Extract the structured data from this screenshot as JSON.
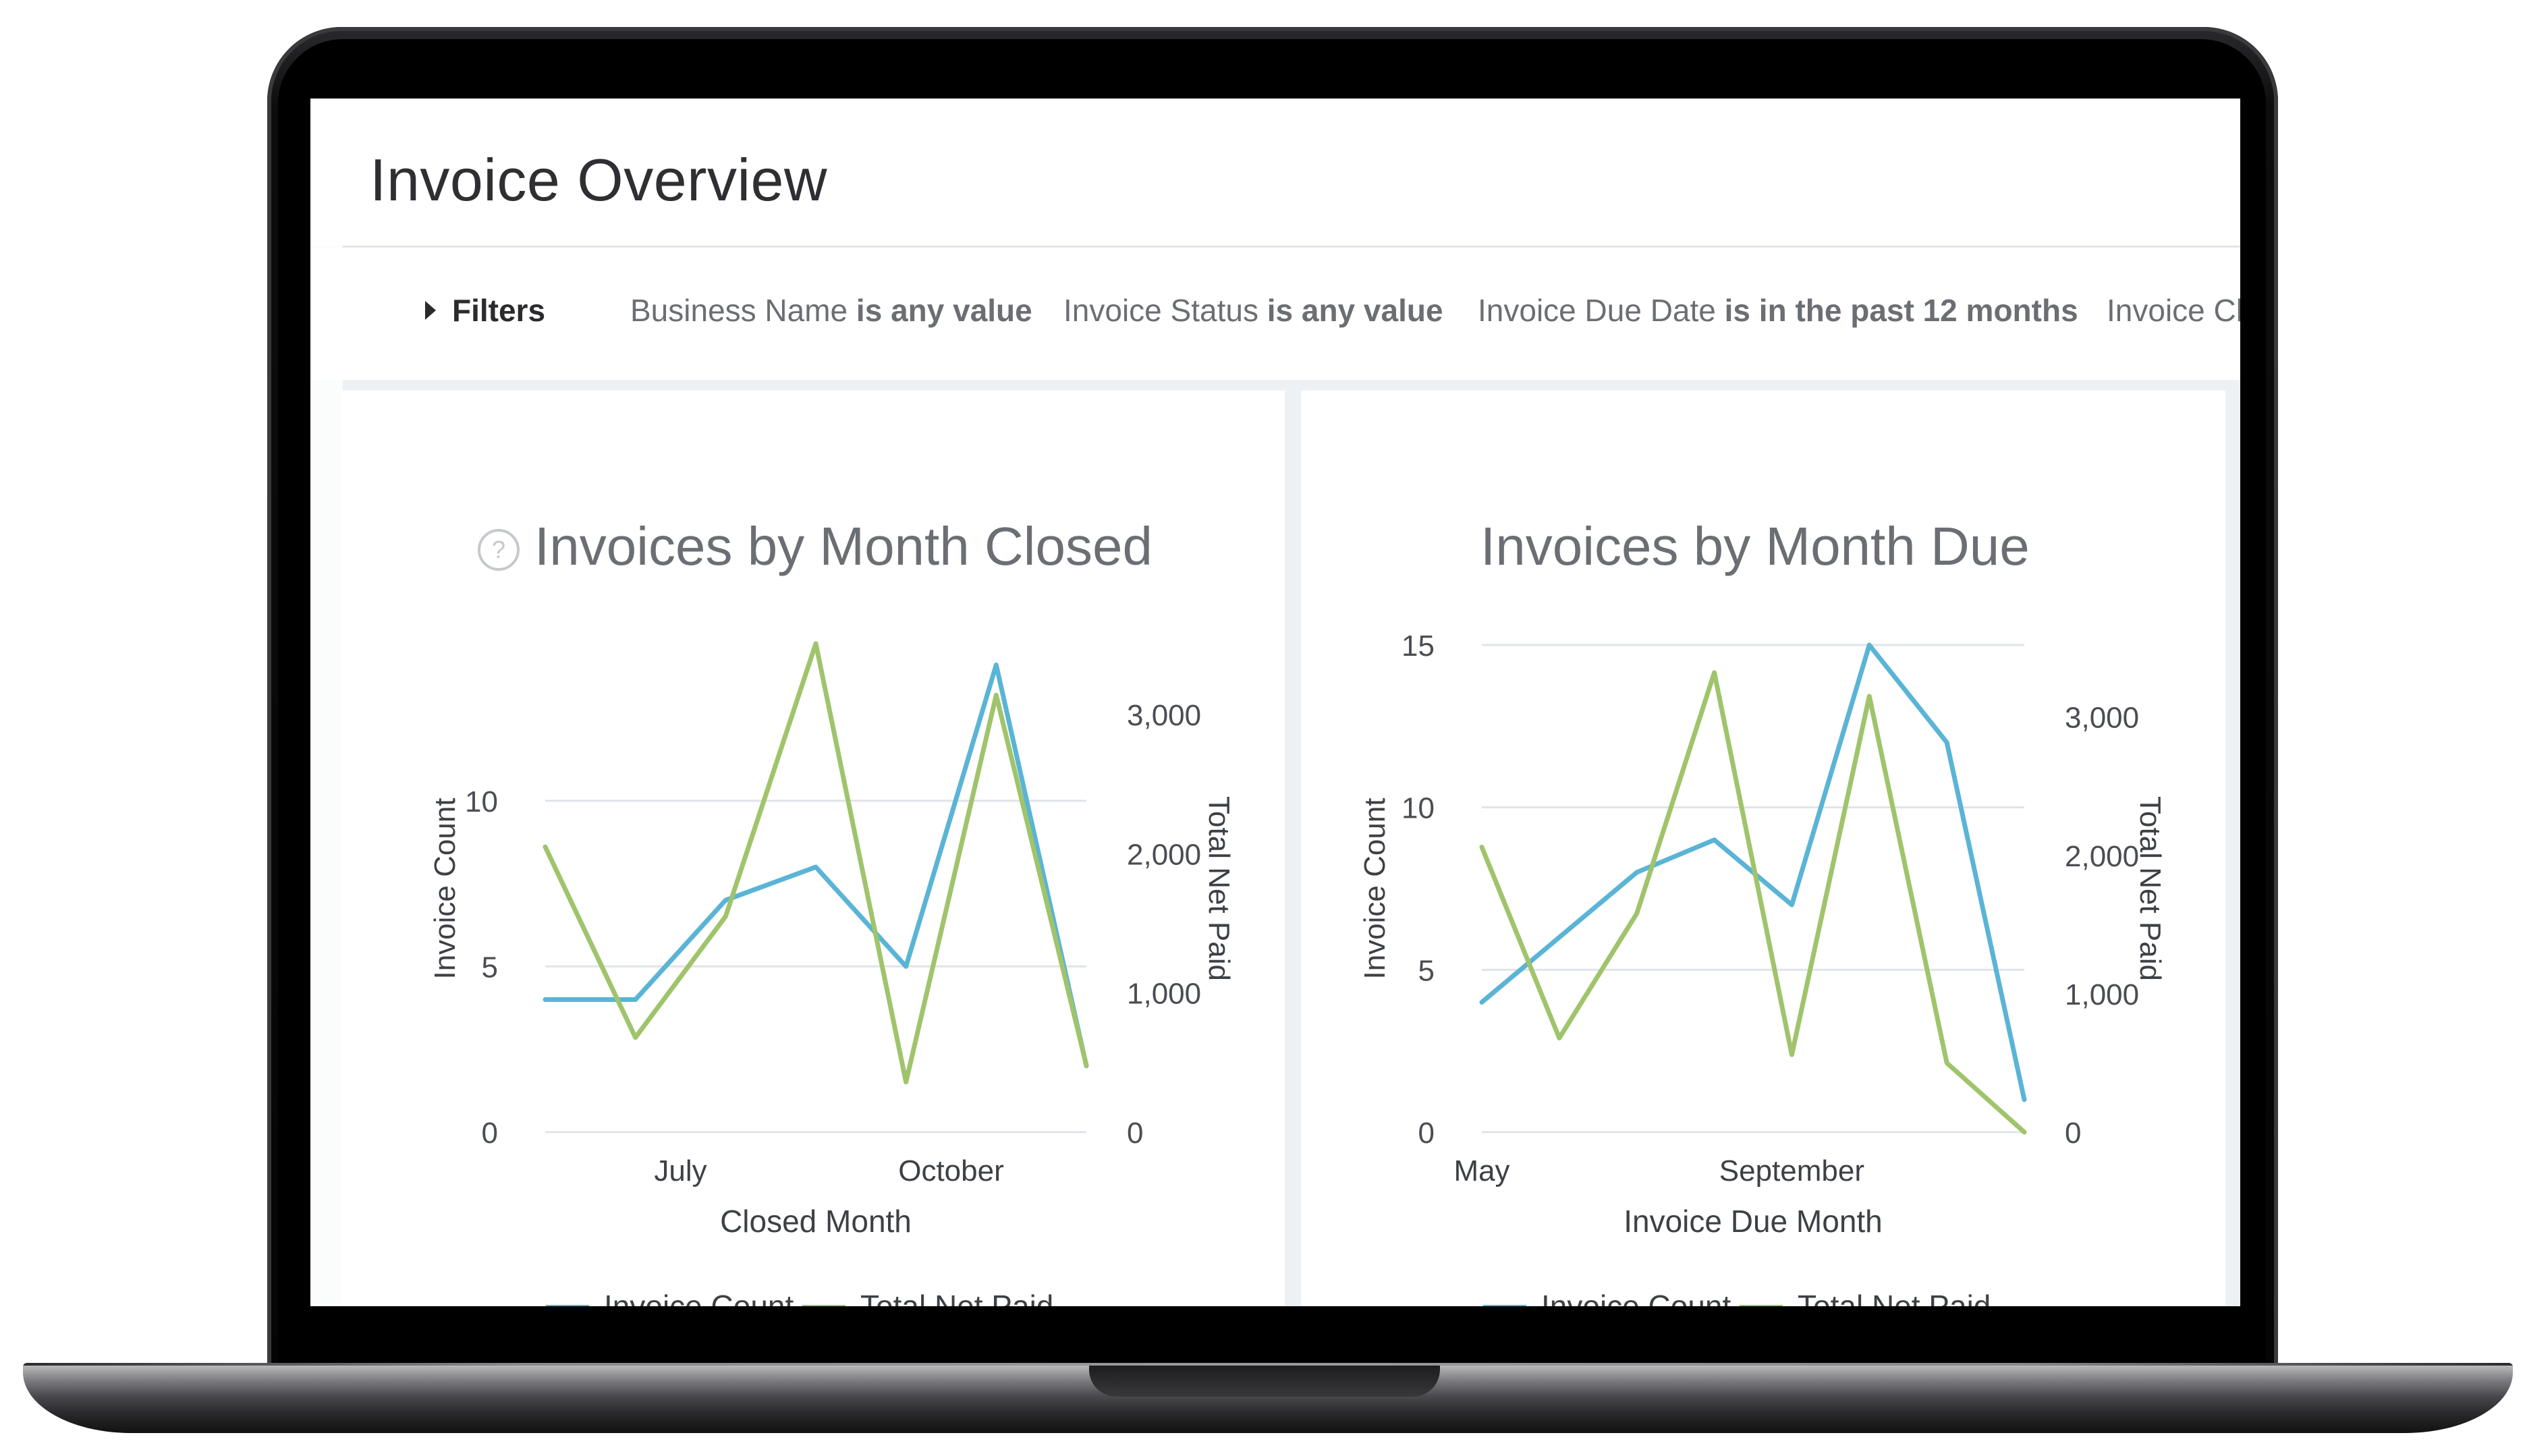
{
  "header": {
    "title": "Invoice Overview"
  },
  "filters": {
    "toggle_label": "Filters",
    "items": [
      {
        "field": "Business Name",
        "condition": "is any value"
      },
      {
        "field": "Invoice Status",
        "condition": "is any value"
      },
      {
        "field": "Invoice Due Date",
        "condition": "is in the past 12 months"
      },
      {
        "field": "Invoice Cl",
        "condition": ""
      }
    ]
  },
  "colors": {
    "invoice_count": "#5ab4d6",
    "total_net_paid": "#9fc46b",
    "grid": "#e0e4e8"
  },
  "tiles": [
    {
      "title": "Invoices by Month Closed",
      "has_help_icon": true
    },
    {
      "title": "Invoices by Month Due",
      "has_help_icon": false
    }
  ],
  "chart_data": [
    {
      "type": "line",
      "title": "Invoices by Month Closed",
      "xlabel": "Closed Month",
      "ylabel": "Invoice Count",
      "y2label": "Total Net Paid",
      "x_tick_labels": [
        "July",
        "October"
      ],
      "x_tick_positions": [
        1.5,
        4.5
      ],
      "x_range": [
        0,
        6
      ],
      "ylim": [
        0,
        14.7
      ],
      "y_ticks": [
        0,
        5,
        10
      ],
      "y2lim": [
        0,
        3500
      ],
      "y2_ticks": [
        0,
        1000,
        2000,
        3000
      ],
      "y2_tick_labels": [
        "0",
        "1,000",
        "2,000",
        "3,000"
      ],
      "legend": "bottom",
      "grid": true,
      "series": [
        {
          "name": "Invoice Count",
          "axis": "left",
          "values": [
            4,
            4,
            7,
            8,
            5,
            14.1,
            2
          ],
          "color": "#5ab4d6"
        },
        {
          "name": "Total Net Paid",
          "axis": "right",
          "values": [
            2050,
            680,
            1550,
            3510,
            360,
            3140,
            480
          ],
          "color": "#9fc46b"
        }
      ]
    },
    {
      "type": "line",
      "title": "Invoices by Month Due",
      "xlabel": "Invoice Due Month",
      "ylabel": "Invoice Count",
      "y2label": "Total Net Paid",
      "x_tick_labels": [
        "May",
        "September"
      ],
      "x_tick_positions": [
        0,
        4
      ],
      "x_range": [
        0,
        7
      ],
      "ylim": [
        0,
        15
      ],
      "y_ticks": [
        0,
        5,
        10,
        15
      ],
      "y2lim": [
        0,
        3520
      ],
      "y2_ticks": [
        0,
        1000,
        2000,
        3000
      ],
      "y2_tick_labels": [
        "0",
        "1,000",
        "2,000",
        "3,000"
      ],
      "legend": "bottom",
      "grid": true,
      "series": [
        {
          "name": "Invoice Count",
          "axis": "left",
          "values": [
            4,
            6,
            8,
            9,
            7,
            15,
            12,
            1
          ],
          "color": "#5ab4d6"
        },
        {
          "name": "Total Net Paid",
          "axis": "right",
          "values": [
            2060,
            680,
            1580,
            3320,
            560,
            3150,
            500,
            0
          ],
          "color": "#9fc46b"
        }
      ]
    }
  ]
}
